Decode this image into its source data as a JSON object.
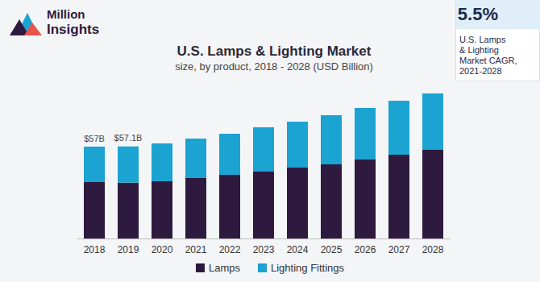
{
  "chart_data": {
    "type": "bar",
    "title": "U.S. Lamps & Lighting Market",
    "subtitle": "size, by product, 2018 - 2028 (USD Billion)",
    "logo": "Million Insights",
    "cagr": {
      "value": "5.5%",
      "label": "U.S. Lamps\n& Lighting\nMarket CAGR,\n2021-2028"
    },
    "categories": [
      "2018",
      "2019",
      "2020",
      "2021",
      "2022",
      "2023",
      "2024",
      "2025",
      "2026",
      "2027",
      "2028"
    ],
    "series": [
      {
        "name": "Lamps",
        "color": "#2e1a3f",
        "values": [
          35,
          34.6,
          35.5,
          37.5,
          39.5,
          41.5,
          44,
          46,
          49,
          52,
          55
        ]
      },
      {
        "name": "Lighting Fittings",
        "color": "#1ba3d1",
        "values": [
          22,
          22.5,
          23.5,
          24.5,
          25.5,
          27.5,
          28.5,
          30.5,
          32,
          33.5,
          35
        ]
      }
    ],
    "annotations": [
      {
        "x": "2018",
        "text": "$57B"
      },
      {
        "x": "2019",
        "text": "$57.1B"
      }
    ],
    "ylim": [
      0,
      100
    ],
    "yticks": [
      0,
      25,
      50,
      75,
      100
    ],
    "stacked": true,
    "grid": false,
    "legend": "bottom",
    "tick_labels": "x"
  }
}
